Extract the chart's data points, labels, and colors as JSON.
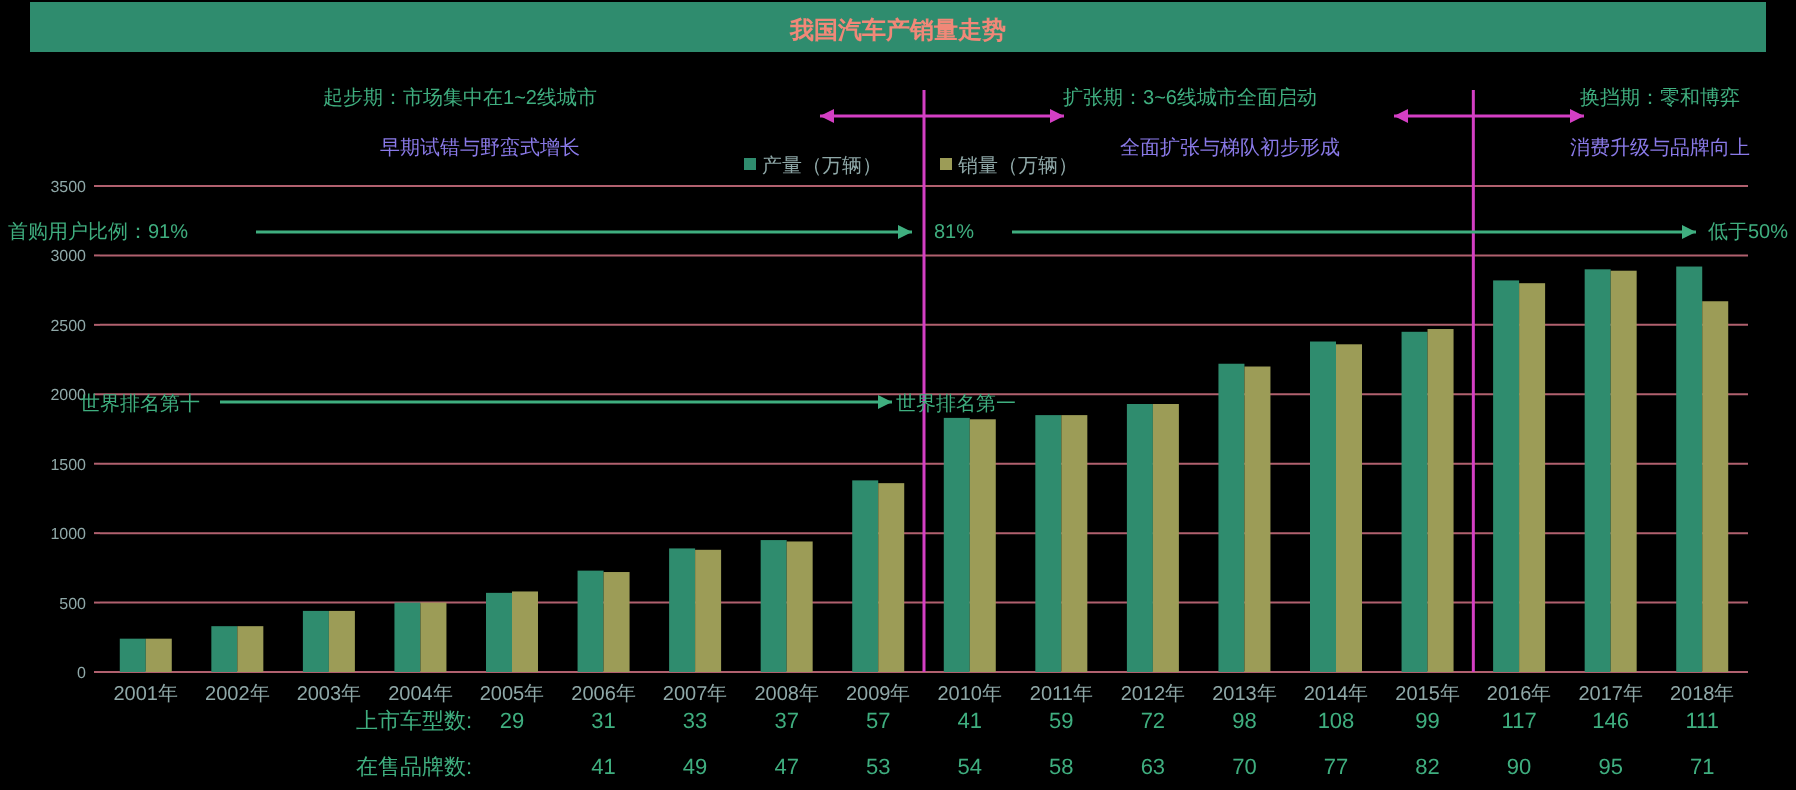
{
  "chart_data": {
    "type": "bar",
    "title": "我国汽车产销量走势",
    "categories": [
      "2001年",
      "2002年",
      "2003年",
      "2004年",
      "2005年",
      "2006年",
      "2007年",
      "2008年",
      "2009年",
      "2010年",
      "2011年",
      "2012年",
      "2013年",
      "2014年",
      "2015年",
      "2016年",
      "2017年",
      "2018年"
    ],
    "series": [
      {
        "name": "产量（万辆）",
        "color": "#2f8c6e",
        "values": [
          240,
          330,
          440,
          500,
          570,
          730,
          890,
          950,
          1380,
          1830,
          1850,
          1930,
          2220,
          2380,
          2450,
          2820,
          2900,
          2920
        ]
      },
      {
        "name": "销量（万辆）",
        "color": "#9c9c57",
        "values": [
          240,
          330,
          440,
          500,
          580,
          720,
          880,
          940,
          1360,
          1820,
          1850,
          1930,
          2200,
          2360,
          2470,
          2800,
          2890,
          2670
        ]
      }
    ],
    "ylim": [
      0,
      3500
    ],
    "yticks": [
      0,
      500,
      1000,
      1500,
      2000,
      2500,
      3000,
      3500
    ],
    "grid": "y",
    "legend": "top",
    "annotations": [
      "起步期：市场集中在1~2线城市",
      "扩张期：3~6线城市全面启动",
      "换挡期：零和博弈",
      "早期试错与野蛮式增长",
      "全面扩张与梯队初步形成",
      "消费升级与品牌向上",
      "首购用户比例：91%",
      "81%",
      "低于50%",
      "世界排名第十",
      "世界排名第一",
      "上市车型数:",
      "在售品牌数:",
      "29",
      "31",
      "33",
      "37",
      "57",
      "41",
      "59",
      "72",
      "98",
      "108",
      "99",
      "117",
      "146",
      "111",
      "41",
      "49",
      "47",
      "53",
      "54",
      "58",
      "63",
      "70",
      "77",
      "82",
      "90",
      "95",
      "71"
    ]
  }
}
